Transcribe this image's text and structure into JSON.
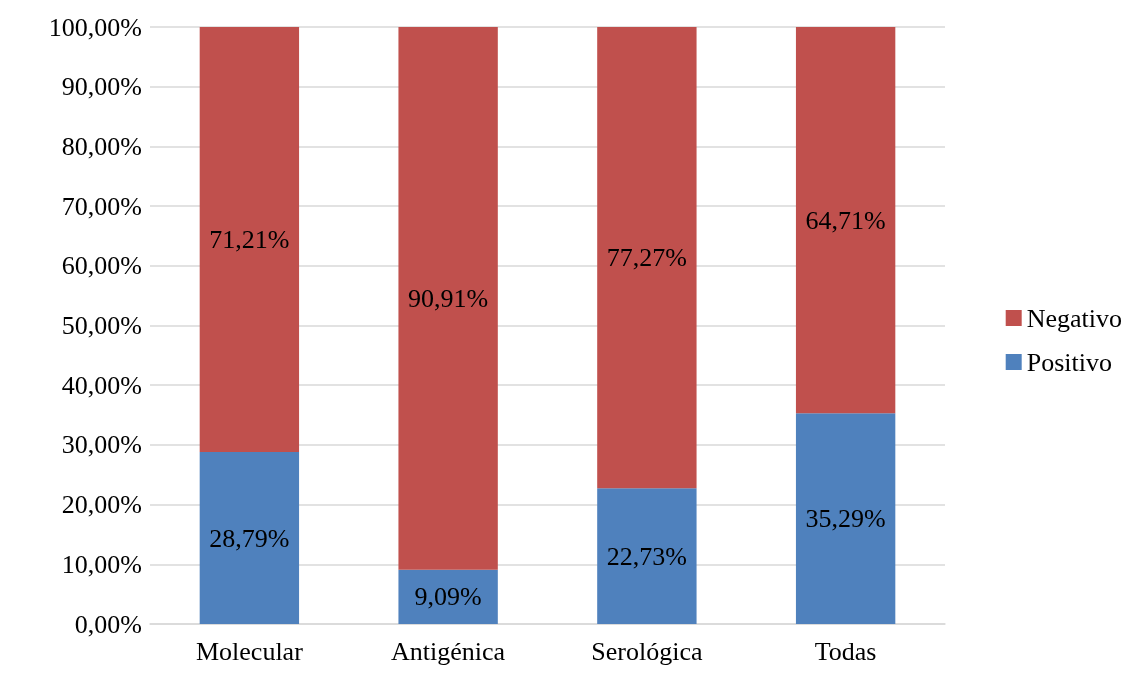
{
  "chart_data": {
    "type": "bar",
    "stacked": true,
    "categories": [
      "Molecular",
      "Antigénica",
      "Serológica",
      "Todas"
    ],
    "series": [
      {
        "name": "Positivo",
        "color": "#4f81bd",
        "values": [
          28.79,
          9.09,
          22.73,
          35.29
        ],
        "value_labels": [
          "28,79%",
          "9,09%",
          "22,73%",
          "35,29%"
        ]
      },
      {
        "name": "Negativo",
        "color": "#c0504d",
        "values": [
          71.21,
          90.91,
          77.27,
          64.71
        ],
        "value_labels": [
          "71,21%",
          "90,91%",
          "77,27%",
          "64,71%"
        ]
      }
    ],
    "ylim": [
      0,
      100
    ],
    "yticks": [
      {
        "value": 0,
        "label": "0,00%"
      },
      {
        "value": 10,
        "label": "10,00%"
      },
      {
        "value": 20,
        "label": "20,00%"
      },
      {
        "value": 30,
        "label": "30,00%"
      },
      {
        "value": 40,
        "label": "40,00%"
      },
      {
        "value": 50,
        "label": "50,00%"
      },
      {
        "value": 60,
        "label": "60,00%"
      },
      {
        "value": 70,
        "label": "70,00%"
      },
      {
        "value": 80,
        "label": "80,00%"
      },
      {
        "value": 90,
        "label": "90,00%"
      },
      {
        "value": 100,
        "label": "100,00%"
      }
    ],
    "grid": "y",
    "legend": "right"
  }
}
